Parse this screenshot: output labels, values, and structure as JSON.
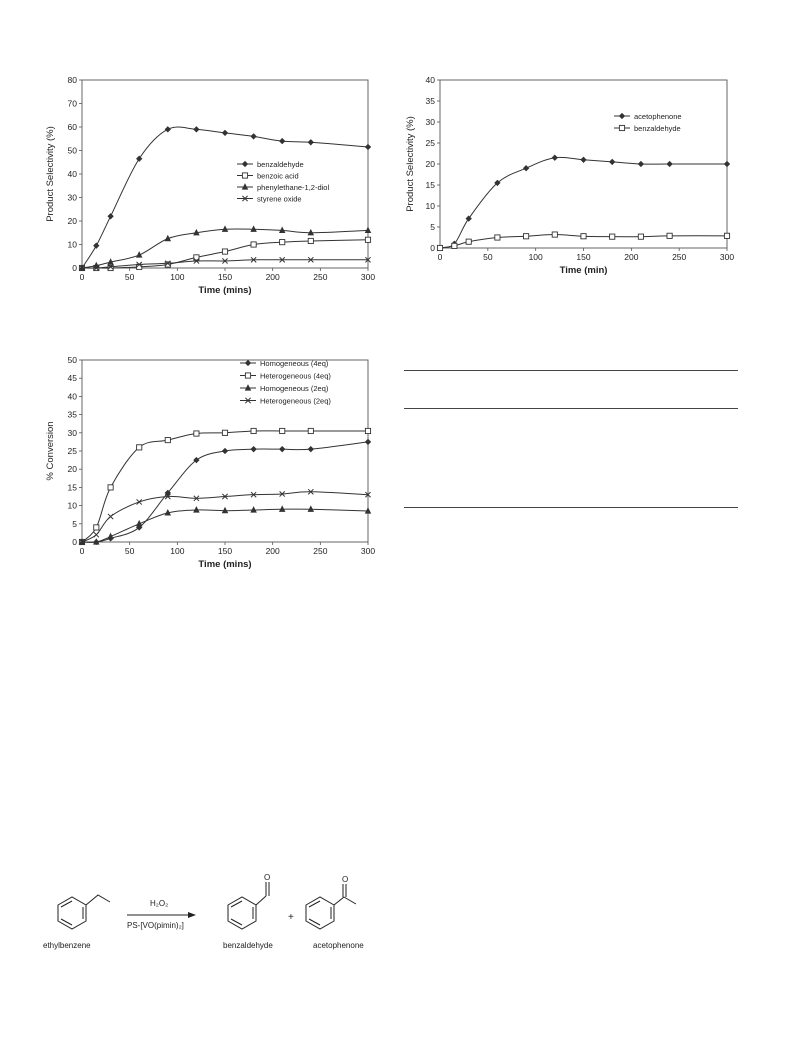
{
  "chart_data": [
    {
      "type": "line",
      "xlabel": "Time (mins)",
      "ylabel": "Product Selectivity (%)",
      "xlim": [
        0,
        300
      ],
      "ylim": [
        0,
        80
      ],
      "xticks": [
        0,
        50,
        100,
        150,
        200,
        250,
        300
      ],
      "yticks": [
        0,
        10,
        20,
        30,
        40,
        50,
        60,
        70,
        80
      ],
      "grid": false,
      "legend_position": "center-right",
      "series": [
        {
          "name": "benzaldehyde",
          "marker": "diamond",
          "x": [
            0,
            15,
            30,
            60,
            90,
            120,
            150,
            180,
            210,
            240,
            300
          ],
          "y": [
            0,
            9.5,
            22,
            46.5,
            59,
            59,
            57.5,
            56,
            54,
            53.5,
            51.5
          ]
        },
        {
          "name": "benzoic acid",
          "marker": "square",
          "x": [
            0,
            15,
            30,
            60,
            90,
            120,
            150,
            180,
            210,
            240,
            300
          ],
          "y": [
            0,
            0,
            0,
            0.5,
            1.5,
            4.5,
            7,
            10,
            11,
            11.5,
            12
          ]
        },
        {
          "name": "phenylethane-1,2-diol",
          "marker": "triangle",
          "x": [
            0,
            15,
            30,
            60,
            90,
            120,
            150,
            180,
            210,
            240,
            300
          ],
          "y": [
            0,
            1,
            2.5,
            5.5,
            12.5,
            15,
            16.5,
            16.5,
            16,
            15,
            16
          ]
        },
        {
          "name": "styrene oxide",
          "marker": "x",
          "x": [
            0,
            15,
            30,
            60,
            90,
            120,
            150,
            180,
            210,
            240,
            300
          ],
          "y": [
            0,
            0,
            0.5,
            1.5,
            2,
            3,
            3,
            3.5,
            3.5,
            3.5,
            3.5
          ]
        }
      ]
    },
    {
      "type": "line",
      "xlabel": "Time (min)",
      "ylabel": "Product Selectivity (%)",
      "xlim": [
        0,
        300
      ],
      "ylim": [
        0,
        40
      ],
      "xticks": [
        0,
        50,
        100,
        150,
        200,
        250,
        300
      ],
      "yticks": [
        0,
        5,
        10,
        15,
        20,
        25,
        30,
        35,
        40
      ],
      "grid": false,
      "legend_position": "top-right",
      "series": [
        {
          "name": "acetophenone",
          "marker": "diamond",
          "x": [
            0,
            15,
            30,
            60,
            90,
            120,
            150,
            180,
            210,
            240,
            300
          ],
          "y": [
            0,
            1,
            7,
            15.5,
            19,
            21.5,
            21,
            20.5,
            20,
            20,
            20
          ]
        },
        {
          "name": "benzaldehyde",
          "marker": "square",
          "x": [
            0,
            15,
            30,
            60,
            90,
            120,
            150,
            180,
            210,
            240,
            300
          ],
          "y": [
            0,
            0.5,
            1.5,
            2.5,
            2.8,
            3.2,
            2.8,
            2.7,
            2.7,
            2.9,
            2.9
          ]
        }
      ]
    },
    {
      "type": "line",
      "xlabel": "Time (mins)",
      "ylabel": "% Conversion",
      "xlim": [
        0,
        300
      ],
      "ylim": [
        0,
        50
      ],
      "xticks": [
        0,
        50,
        100,
        150,
        200,
        250,
        300
      ],
      "yticks": [
        0,
        5,
        10,
        15,
        20,
        25,
        30,
        35,
        40,
        45,
        50
      ],
      "grid": false,
      "legend_position": "top-right",
      "series": [
        {
          "name": "Homogeneous (4eq)",
          "marker": "diamond",
          "x": [
            0,
            15,
            30,
            60,
            90,
            120,
            150,
            180,
            210,
            240,
            300
          ],
          "y": [
            0,
            0,
            1,
            4,
            13.5,
            22.5,
            25,
            25.5,
            25.5,
            25.5,
            27.5
          ]
        },
        {
          "name": "Heterogeneous (4eq)",
          "marker": "square",
          "x": [
            0,
            15,
            30,
            60,
            90,
            120,
            150,
            180,
            210,
            240,
            300
          ],
          "y": [
            0,
            4,
            15,
            26,
            28,
            29.8,
            30,
            30.5,
            30.5,
            30.5,
            30.5
          ]
        },
        {
          "name": "Homogeneous (2eq)",
          "marker": "triangle",
          "x": [
            0,
            15,
            30,
            60,
            90,
            120,
            150,
            180,
            210,
            240,
            300
          ],
          "y": [
            0,
            0,
            1.5,
            5,
            8,
            8.8,
            8.6,
            8.8,
            9,
            9,
            8.5
          ]
        },
        {
          "name": "Heterogeneous (2eq)",
          "marker": "x",
          "x": [
            0,
            15,
            30,
            60,
            90,
            120,
            150,
            180,
            210,
            240,
            300
          ],
          "y": [
            0,
            2,
            7,
            11,
            12.5,
            12,
            12.5,
            13,
            13.2,
            13.8,
            13
          ]
        }
      ]
    }
  ],
  "scheme": {
    "reagent_top": "H₂O₂",
    "reagent_bottom": "PS-[VO(pimin)₂]",
    "reactant": "ethylbenzene",
    "product_1": "benzaldehyde",
    "plus": "+",
    "product_2": "acetophenone",
    "oxygen_1": "O",
    "oxygen_2": "O"
  }
}
